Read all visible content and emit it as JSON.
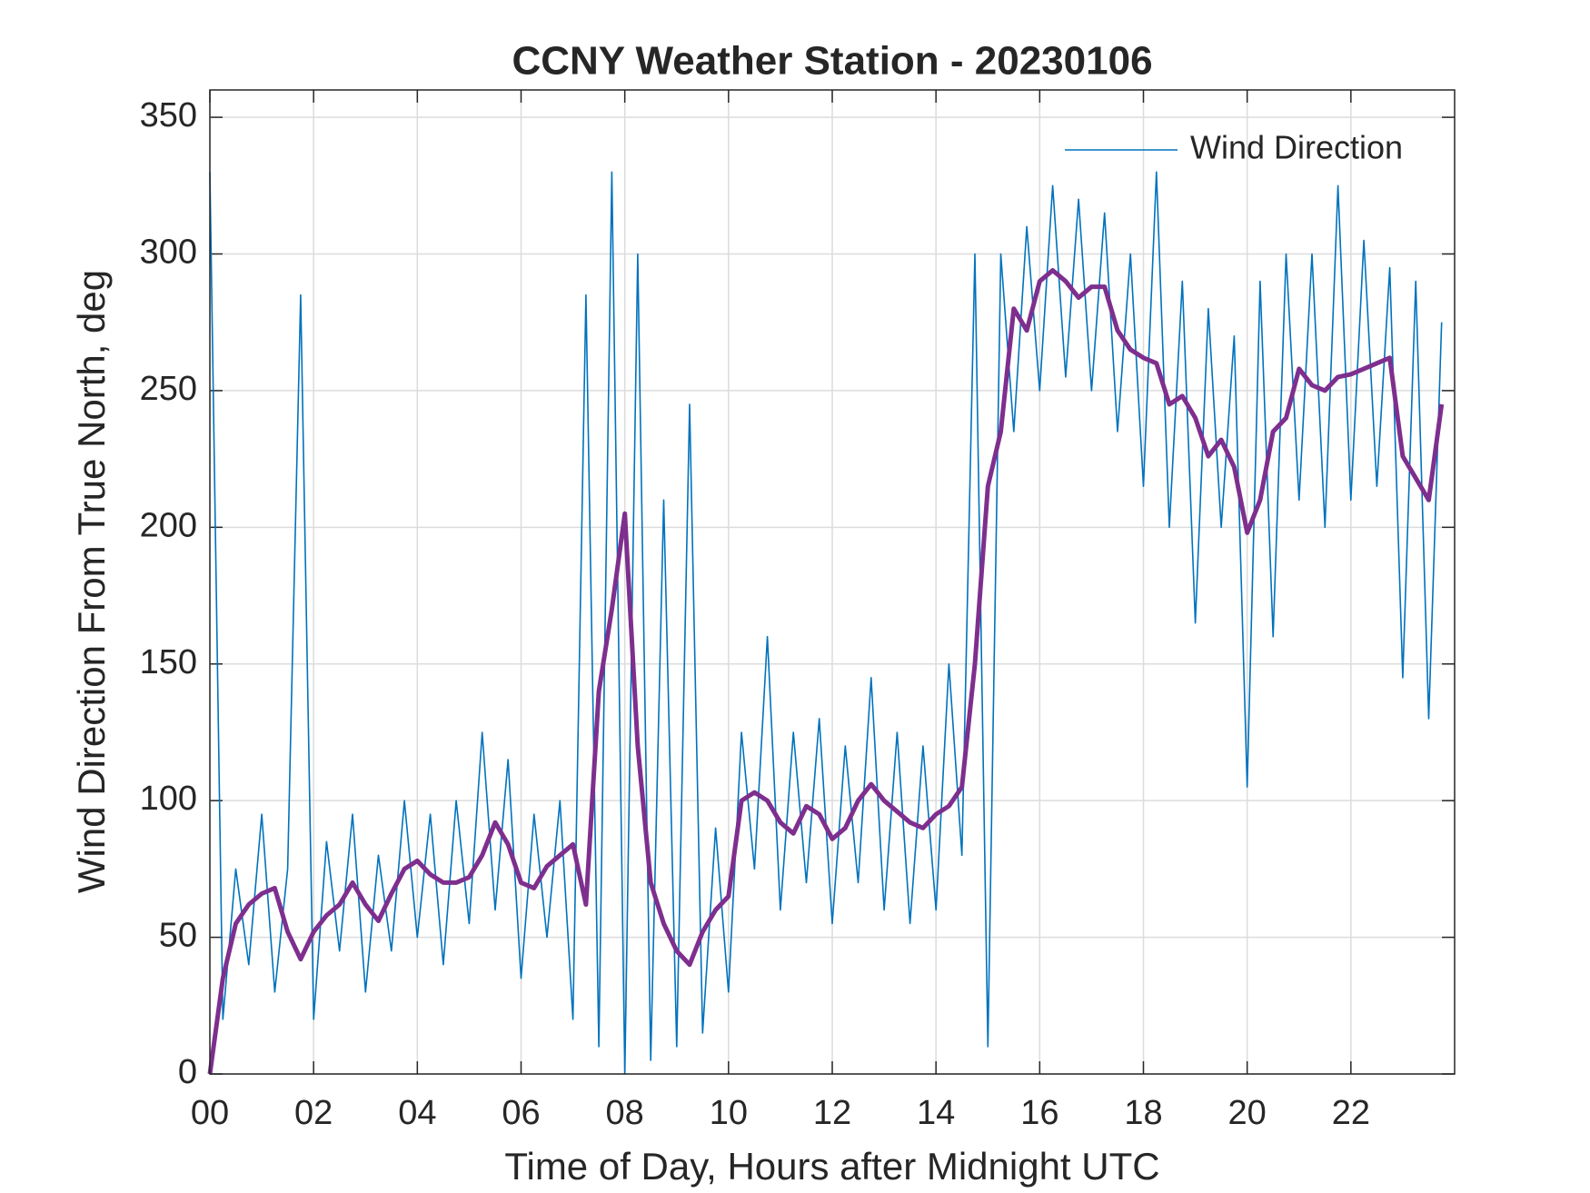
{
  "chart_data": {
    "type": "line",
    "title": "CCNY Weather Station - 20230106",
    "xlabel": "Time of Day, Hours after Midnight UTC",
    "ylabel": "Wind Direction From True North, deg",
    "x": [
      0,
      0.25,
      0.5,
      0.75,
      1,
      1.25,
      1.5,
      1.75,
      2,
      2.25,
      2.5,
      2.75,
      3,
      3.25,
      3.5,
      3.75,
      4,
      4.25,
      4.5,
      4.75,
      5,
      5.25,
      5.5,
      5.75,
      6,
      6.25,
      6.5,
      6.75,
      7,
      7.25,
      7.5,
      7.75,
      8,
      8.25,
      8.5,
      8.75,
      9,
      9.25,
      9.5,
      9.75,
      10,
      10.25,
      10.5,
      10.75,
      11,
      11.25,
      11.5,
      11.75,
      12,
      12.25,
      12.5,
      12.75,
      13,
      13.25,
      13.5,
      13.75,
      14,
      14.25,
      14.5,
      14.75,
      15,
      15.25,
      15.5,
      15.75,
      16,
      16.25,
      16.5,
      16.75,
      17,
      17.25,
      17.5,
      17.75,
      18,
      18.25,
      18.5,
      18.75,
      19,
      19.25,
      19.5,
      19.75,
      20,
      20.25,
      20.5,
      20.75,
      21,
      21.25,
      21.5,
      21.75,
      22,
      22.25,
      22.5,
      22.75,
      23,
      23.25,
      23.5,
      23.75
    ],
    "series": [
      {
        "name": "Wind Direction",
        "color": "#0072BD",
        "values": [
          330,
          20,
          75,
          40,
          95,
          30,
          75,
          285,
          20,
          85,
          45,
          95,
          30,
          80,
          45,
          100,
          50,
          95,
          40,
          100,
          55,
          125,
          60,
          115,
          35,
          95,
          50,
          100,
          20,
          285,
          10,
          330,
          0,
          300,
          5,
          210,
          10,
          245,
          15,
          90,
          30,
          125,
          75,
          160,
          60,
          125,
          70,
          130,
          55,
          120,
          70,
          145,
          60,
          125,
          55,
          120,
          60,
          150,
          80,
          300,
          10,
          300,
          235,
          310,
          250,
          325,
          255,
          320,
          250,
          315,
          235,
          300,
          215,
          330,
          200,
          290,
          165,
          280,
          200,
          270,
          105,
          290,
          160,
          300,
          210,
          300,
          200,
          325,
          210,
          305,
          215,
          295,
          145,
          290,
          130,
          275
        ]
      },
      {
        "color": "#7E2F8E",
        "values": [
          0,
          35,
          55,
          62,
          66,
          68,
          52,
          42,
          52,
          58,
          62,
          70,
          62,
          56,
          66,
          75,
          78,
          73,
          70,
          70,
          72,
          80,
          92,
          84,
          70,
          68,
          76,
          80,
          84,
          62,
          140,
          170,
          205,
          120,
          70,
          55,
          45,
          40,
          52,
          60,
          65,
          100,
          103,
          100,
          92,
          88,
          98,
          95,
          86,
          90,
          100,
          106,
          100,
          96,
          92,
          90,
          95,
          98,
          105,
          150,
          215,
          235,
          280,
          272,
          290,
          294,
          290,
          284,
          288,
          288,
          272,
          265,
          262,
          260,
          245,
          248,
          240,
          226,
          232,
          222,
          198,
          210,
          235,
          240,
          258,
          252,
          250,
          255,
          256,
          258,
          260,
          262,
          226,
          218,
          210,
          245
        ]
      }
    ],
    "xlim": [
      0,
      24
    ],
    "xticks": [
      {
        "value": 0,
        "label": "00"
      },
      {
        "value": 2,
        "label": "02"
      },
      {
        "value": 4,
        "label": "04"
      },
      {
        "value": 6,
        "label": "06"
      },
      {
        "value": 8,
        "label": "08"
      },
      {
        "value": 10,
        "label": "10"
      },
      {
        "value": 12,
        "label": "12"
      },
      {
        "value": 14,
        "label": "14"
      },
      {
        "value": 16,
        "label": "16"
      },
      {
        "value": 18,
        "label": "18"
      },
      {
        "value": 20,
        "label": "20"
      },
      {
        "value": 22,
        "label": "22"
      }
    ],
    "ylim": [
      0,
      360
    ],
    "yticks": [
      0,
      50,
      100,
      150,
      200,
      250,
      300,
      350
    ],
    "grid": true,
    "legend": "northeast"
  }
}
